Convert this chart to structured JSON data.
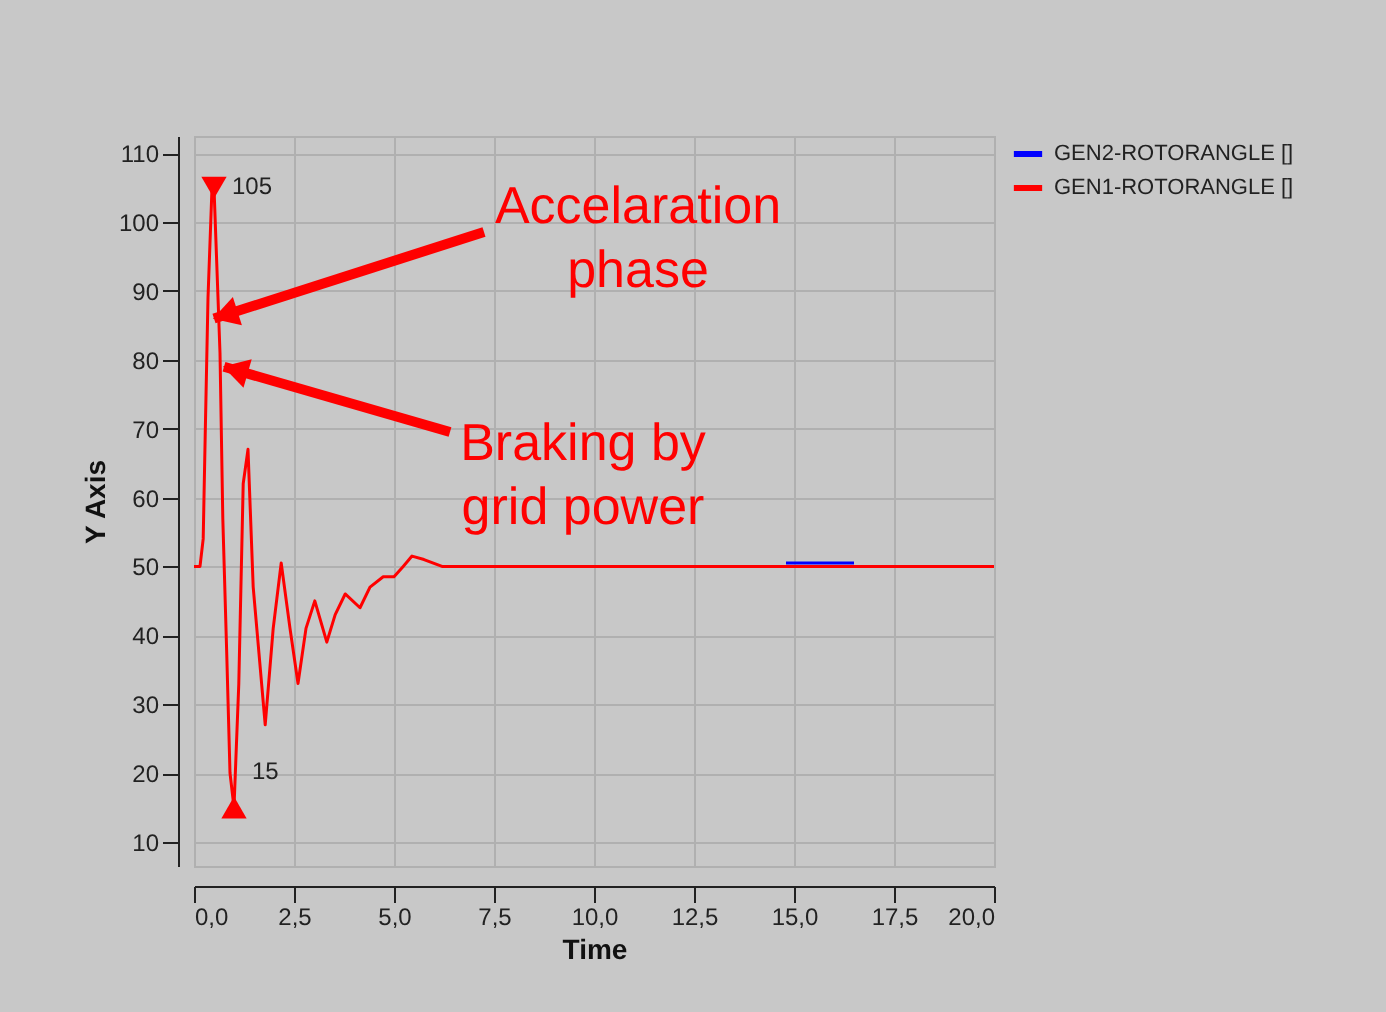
{
  "chart_data": {
    "type": "line",
    "xlabel": "Time",
    "ylabel": "Y Axis",
    "xlim": [
      0,
      20
    ],
    "ylim": [
      6.5,
      112.5
    ],
    "xticks": [
      {
        "value": 0,
        "label": "0,0"
      },
      {
        "value": 2.5,
        "label": "2,5"
      },
      {
        "value": 5,
        "label": "5,0"
      },
      {
        "value": 7.5,
        "label": "7,5"
      },
      {
        "value": 10,
        "label": "10,0"
      },
      {
        "value": 12.5,
        "label": "12,5"
      },
      {
        "value": 15,
        "label": "15,0"
      },
      {
        "value": 17.5,
        "label": "17,5"
      },
      {
        "value": 20,
        "label": "20,0"
      }
    ],
    "yticks": [
      10,
      20,
      30,
      40,
      50,
      60,
      70,
      80,
      90,
      100,
      110
    ],
    "grid": true,
    "legend": "top right",
    "marker": "none",
    "line_style": "solid",
    "series": [
      {
        "name": "GEN2-ROTORANGLE []",
        "color": "#0000ff",
        "x": [
          14.8,
          16.5
        ],
        "values": [
          50.5,
          50.5
        ]
      },
      {
        "name": "GEN1-ROTORANGLE []",
        "color": "#ff0000",
        "x": [
          0,
          0.15,
          0.23,
          0.28,
          0.35,
          0.45,
          0.5,
          0.65,
          0.72,
          0.82,
          0.9,
          1.0,
          1.12,
          1.23,
          1.35,
          1.48,
          1.78,
          1.98,
          2.18,
          2.4,
          2.6,
          2.8,
          3.02,
          3.32,
          3.53,
          3.78,
          4.15,
          4.4,
          4.73,
          5.0,
          5.23,
          5.45,
          5.75,
          6.2,
          20
        ],
        "values": [
          50,
          50,
          54,
          69,
          89,
          105,
          105,
          81,
          57,
          37,
          20,
          15,
          33,
          62,
          67,
          47,
          27,
          41,
          50.5,
          41,
          33,
          41,
          45,
          39,
          43,
          46,
          44,
          47,
          48.5,
          48.5,
          50,
          51.5,
          51,
          50,
          50
        ]
      },
      {
        "type": "scatter",
        "marker": "triangle",
        "color": "#ff0000",
        "x": [
          0.5,
          1.0
        ],
        "values": [
          105,
          15
        ]
      }
    ],
    "annotations": [
      {
        "text": "105",
        "x": 0.5,
        "y": 105
      },
      {
        "text": "15",
        "x": 1.0,
        "y": 15
      },
      {
        "text": "Accelaration phase",
        "x": 0.5,
        "y": 86
      },
      {
        "text": "Braking by grid power",
        "x": 0.75,
        "y": 79
      }
    ]
  }
}
